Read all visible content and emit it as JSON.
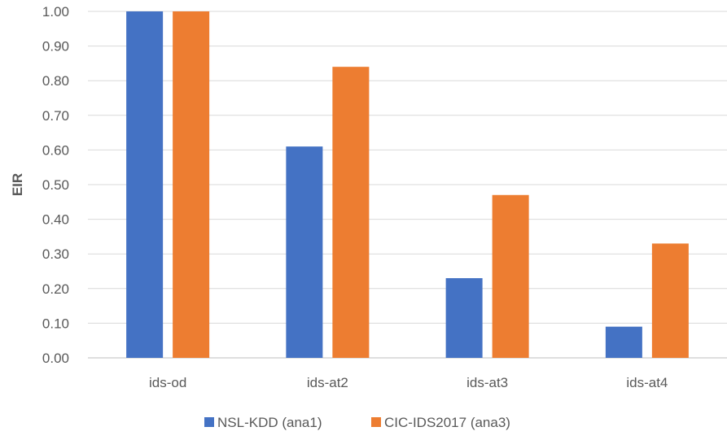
{
  "chart_data": {
    "type": "bar",
    "title": "",
    "xlabel": "",
    "ylabel": "EIR",
    "categories": [
      "ids-od",
      "ids-at2",
      "ids-at3",
      "ids-at4"
    ],
    "series": [
      {
        "name": "NSL-KDD (ana1)",
        "color": "#4472c4",
        "values": [
          1.0,
          0.61,
          0.23,
          0.09
        ]
      },
      {
        "name": "CIC-IDS2017 (ana3)",
        "color": "#ed7d31",
        "values": [
          1.0,
          0.84,
          0.47,
          0.33
        ]
      }
    ],
    "ylim": [
      0,
      1.0
    ],
    "yticks": [
      "0.00",
      "0.10",
      "0.20",
      "0.30",
      "0.40",
      "0.50",
      "0.60",
      "0.70",
      "0.80",
      "0.90",
      "1.00"
    ],
    "grid": true,
    "legend_position": "bottom"
  }
}
